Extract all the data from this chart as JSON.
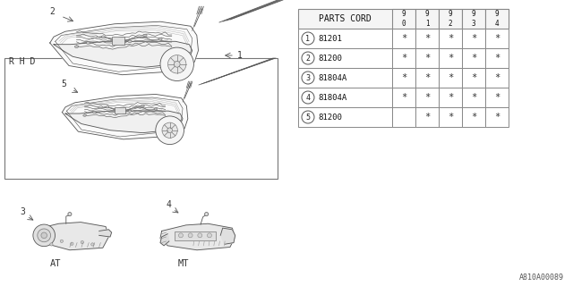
{
  "bg_color": "#ffffff",
  "table": {
    "title": "PARTS CORD",
    "col_headers": [
      "9\n0",
      "9\n1",
      "9\n2",
      "9\n3",
      "9\n4"
    ],
    "rows": [
      {
        "num": "1",
        "part": "81201",
        "marks": [
          "*",
          "*",
          "*",
          "*",
          "*"
        ]
      },
      {
        "num": "2",
        "part": "81200",
        "marks": [
          "*",
          "*",
          "*",
          "*",
          "*"
        ]
      },
      {
        "num": "3",
        "part": "81804A",
        "marks": [
          "*",
          "*",
          "*",
          "*",
          "*"
        ]
      },
      {
        "num": "4",
        "part": "81804A",
        "marks": [
          "*",
          "*",
          "*",
          "*",
          "*"
        ]
      },
      {
        "num": "5",
        "part": "81200",
        "marks": [
          "",
          "*",
          "*",
          "*",
          "*"
        ]
      }
    ]
  },
  "bottom_label": "A810A00089",
  "rhd_label": "R H D",
  "at_label": "AT",
  "mt_label": "MT",
  "label1": "1",
  "label2": "2",
  "label3": "3",
  "label4": "4",
  "label5": "5"
}
